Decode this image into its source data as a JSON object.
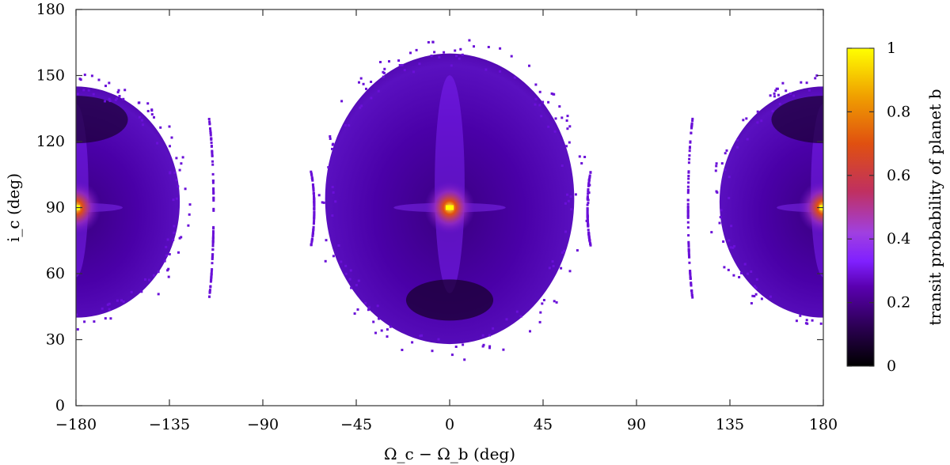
{
  "chart_data": {
    "type": "heatmap",
    "title": "",
    "xlabel": "Ω_c − Ω_b (deg)",
    "ylabel": "i_c (deg)",
    "xlim": [
      -180,
      180
    ],
    "ylim": [
      0,
      180
    ],
    "xticks": [
      -180,
      -135,
      -90,
      -45,
      0,
      45,
      90,
      135,
      180
    ],
    "xtick_labels": [
      "−180",
      "−135",
      "−90",
      "−45",
      "0",
      "45",
      "90",
      "135",
      "180"
    ],
    "yticks": [
      0,
      30,
      60,
      90,
      120,
      150,
      180
    ],
    "ytick_labels": [
      "0",
      "30",
      "60",
      "90",
      "120",
      "150",
      "180"
    ],
    "colorbar": {
      "label": "transit probability of planet b",
      "range": [
        0,
        1
      ],
      "ticks": [
        0,
        0.2,
        0.4,
        0.6,
        0.8,
        1
      ],
      "tick_labels": [
        "0",
        "0.2",
        "0.4",
        "0.6",
        "0.8",
        "1"
      ],
      "colormap": [
        "#000000",
        "#2a0050",
        "#5a00b0",
        "#8020ff",
        "#a040e0",
        "#c03060",
        "#e05010",
        "#f0a000",
        "#ffff00"
      ]
    },
    "regions": [
      {
        "name": "central lobe",
        "center": [
          0,
          90
        ],
        "x_extent": [
          -60,
          60
        ],
        "y_extent": [
          28,
          160
        ],
        "peak_value": 1.0,
        "background_value": 0.08
      },
      {
        "name": "left lobe (wraps)",
        "center": [
          -180,
          90
        ],
        "x_extent": [
          -180,
          -130
        ],
        "y_extent": [
          40,
          145
        ],
        "peak_value": 1.0,
        "background_value": 0.06
      },
      {
        "name": "right lobe (wraps)",
        "center": [
          180,
          90
        ],
        "x_extent": [
          130,
          180
        ],
        "y_extent": [
          40,
          145
        ],
        "peak_value": 1.0,
        "background_value": 0.06
      }
    ],
    "grid": false,
    "legend": "colorbar-right"
  }
}
